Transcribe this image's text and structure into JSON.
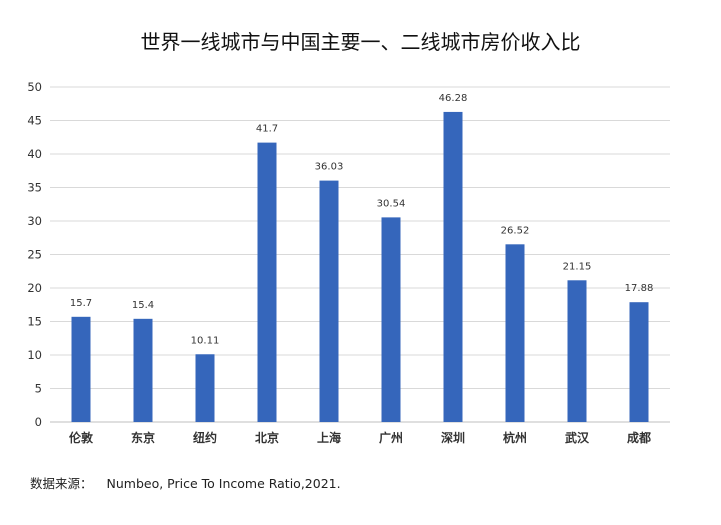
{
  "chart_data": {
    "type": "bar",
    "title": "世界一线城市与中国主要一、二线城市房价收入比",
    "xlabel": "",
    "ylabel": "",
    "categories": [
      "伦敦",
      "东京",
      "纽约",
      "北京",
      "上海",
      "广州",
      "深圳",
      "杭州",
      "武汉",
      "成都"
    ],
    "values": [
      15.7,
      15.4,
      10.11,
      41.7,
      36.03,
      30.54,
      46.28,
      26.52,
      21.15,
      17.88
    ],
    "value_labels": [
      "15.7",
      "15.4",
      "10.11",
      "41.7",
      "36.03",
      "30.54",
      "46.28",
      "26.52",
      "21.15",
      "17.88"
    ],
    "ylim": [
      0,
      50
    ],
    "yticks": [
      0,
      5,
      10,
      15,
      20,
      25,
      30,
      35,
      40,
      45,
      50
    ],
    "grid": true,
    "legend": "none",
    "colors": {
      "bar": "#3566bb",
      "grid": "#d9d9d9",
      "axis": "#bfbfbf",
      "text": "#333333"
    }
  },
  "source": {
    "label": "数据来源：",
    "text": "Numbeo, Price To Income Ratio,2021."
  }
}
